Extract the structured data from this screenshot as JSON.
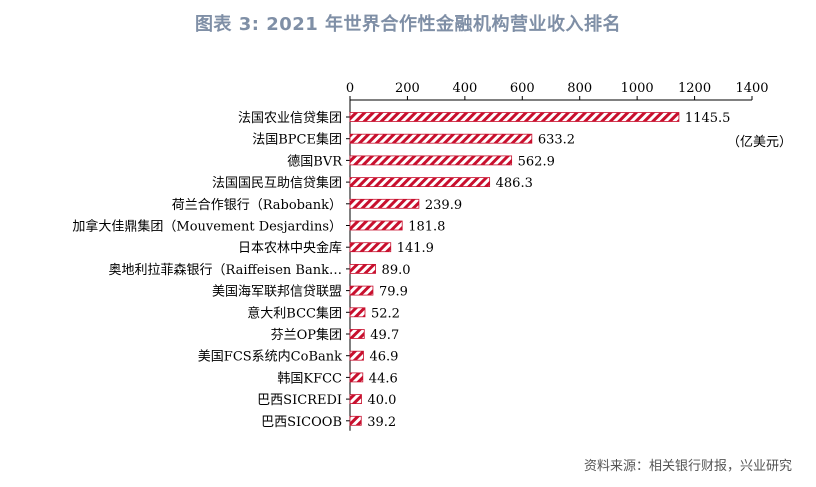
{
  "title": "图表 3:  2021 年世界合作性金融机构营业收入排名",
  "source": "资料来源：相关银行财报，兴业研究",
  "chart_data": {
    "type": "bar",
    "orientation": "horizontal",
    "title": "图表 3:  2021 年世界合作性金融机构营业收入排名",
    "unit_label": "（亿美元）",
    "xlim": [
      0,
      1400
    ],
    "xticks": [
      "0",
      "200",
      "400",
      "600",
      "800",
      "1000",
      "1200",
      "1400"
    ],
    "grid": false,
    "bar_pattern": "red-white diagonal stripes",
    "colors": {
      "bar": "#c8102e",
      "axis": "#000000",
      "title": "#7f8fa6"
    },
    "categories": [
      "法国农业信贷集团",
      "法国BPCE集团",
      "德国BVR",
      "法国国民互助信贷集团",
      "荷兰合作银行（Rabobank）",
      "加拿大佳鼎集团（Mouvement Desjardins）",
      "日本农林中央金库",
      "奥地利拉菲森银行（Raiffeisen Bank…",
      "美国海军联邦信贷联盟",
      "意大利BCC集团",
      "芬兰OP集团",
      "美国FCS系统内CoBank",
      "韩国KFCC",
      "巴西SICREDI",
      "巴西SICOOB"
    ],
    "values": [
      1145.5,
      633.2,
      562.9,
      486.3,
      239.9,
      181.8,
      141.9,
      89.0,
      79.9,
      52.2,
      49.7,
      46.9,
      44.6,
      40.0,
      39.2
    ],
    "value_labels": [
      "1145.5",
      "633.2",
      "562.9",
      "486.3",
      "239.9",
      "181.8",
      "141.9",
      "89.0",
      "79.9",
      "52.2",
      "49.7",
      "46.9",
      "44.6",
      "40.0",
      "39.2"
    ]
  }
}
